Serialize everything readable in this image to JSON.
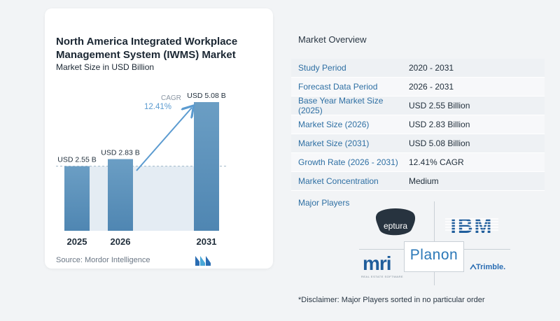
{
  "chart_panel": {
    "title": "North America Integrated Workplace Management System (IWMS) Market",
    "subtitle": "Market Size in USD Billion",
    "source": "Source: Mordor Intelligence"
  },
  "chart_data": {
    "type": "bar",
    "title": "North America Integrated Workplace Management System (IWMS) Market",
    "subtitle": "Market Size in USD Billion",
    "categories": [
      "2025",
      "2026",
      "2031"
    ],
    "values": [
      2.55,
      2.83,
      5.08
    ],
    "data_labels": [
      "USD 2.55 B",
      "USD 2.83 B",
      "USD 5.08 B"
    ],
    "cagr_label": "CAGR",
    "cagr_value": "12.41%",
    "bar_color": "#6b9ec4",
    "baseline_reference": 2.55
  },
  "overview": {
    "title": "Market Overview",
    "rows": [
      {
        "label": "Study Period",
        "value": "2020 - 2031"
      },
      {
        "label": "Forecast Data Period",
        "value": "2026 - 2031"
      },
      {
        "label": "Base Year Market Size (2025)",
        "value": "USD 2.55 Billion"
      },
      {
        "label": "Market Size (2026)",
        "value": "USD 2.83 Billion"
      },
      {
        "label": "Market Size (2031)",
        "value": "USD 5.08 Billion"
      },
      {
        "label": "Growth Rate (2026 - 2031)",
        "value": "12.41% CAGR"
      },
      {
        "label": "Market Concentration",
        "value": "Medium"
      }
    ]
  },
  "players": {
    "title": "Major Players",
    "logos": {
      "eptura": "eptura",
      "ibm": "IBM",
      "mri": "mri",
      "mri_tagline": "REAL ESTATE SOFTWARE",
      "planon": "Planon",
      "trimble": "Trimble."
    }
  },
  "disclaimer": "*Disclaimer: Major Players sorted in no particular order",
  "colors": {
    "accent": "#2e6fa3",
    "bar": "#6b9ec4",
    "arrow": "#5b9bd0"
  }
}
